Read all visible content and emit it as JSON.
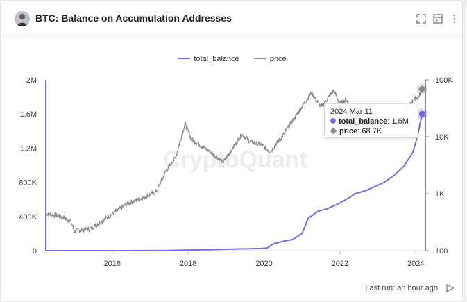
{
  "header": {
    "title": "BTC: Balance on Accumulation Addresses",
    "icons": [
      "avatar-photo",
      "expand-icon",
      "table-view-icon",
      "more-vertical-icon"
    ]
  },
  "watermark": "CryptoQuant",
  "footer": {
    "last_run": "Last run: an hour ago",
    "icon": "play-icon"
  },
  "colors": {
    "balance": "#7b68ee",
    "price": "#8c8c8c"
  },
  "tooltip": {
    "date": "2024 Mar 11",
    "rows": [
      {
        "series": "total_balance",
        "value": "1.6M"
      },
      {
        "series": "price",
        "value": "68.7K"
      }
    ]
  },
  "chart_data": {
    "type": "line",
    "legend_position": "top-center",
    "grid": false,
    "x_ticks": [
      "2016",
      "2018",
      "2020",
      "2022",
      "2024"
    ],
    "x_range": [
      "2014-04",
      "2024-03"
    ],
    "y_left": {
      "ticks": [
        "0",
        "400K",
        "800K",
        "1.2M",
        "1.6M",
        "2M"
      ],
      "range": [
        0,
        2000000
      ]
    },
    "y_right": {
      "ticks": [
        "100",
        "1K",
        "10K",
        "100K"
      ],
      "scale": "log",
      "range": [
        100,
        100000
      ]
    },
    "series": [
      {
        "name": "total_balance",
        "axis": "left",
        "points": [
          [
            "2014-04",
            0
          ],
          [
            "2015-06",
            0
          ],
          [
            "2016-06",
            0
          ],
          [
            "2017-06",
            2000
          ],
          [
            "2018-06",
            10000
          ],
          [
            "2019-06",
            20000
          ],
          [
            "2019-12",
            25000
          ],
          [
            "2020-02",
            30000
          ],
          [
            "2020-04",
            80000
          ],
          [
            "2020-07",
            110000
          ],
          [
            "2020-10",
            130000
          ],
          [
            "2021-01",
            200000
          ],
          [
            "2021-03",
            380000
          ],
          [
            "2021-06",
            460000
          ],
          [
            "2021-09",
            490000
          ],
          [
            "2021-12",
            540000
          ],
          [
            "2022-03",
            600000
          ],
          [
            "2022-06",
            670000
          ],
          [
            "2022-09",
            700000
          ],
          [
            "2022-12",
            750000
          ],
          [
            "2023-03",
            800000
          ],
          [
            "2023-06",
            880000
          ],
          [
            "2023-09",
            980000
          ],
          [
            "2023-12",
            1150000
          ],
          [
            "2024-01",
            1270000
          ],
          [
            "2024-02",
            1430000
          ],
          [
            "2024-03",
            1600000
          ]
        ]
      },
      {
        "name": "price",
        "axis": "right",
        "points": [
          [
            "2014-04",
            450
          ],
          [
            "2014-09",
            400
          ],
          [
            "2014-12",
            320
          ],
          [
            "2015-01",
            220
          ],
          [
            "2015-06",
            240
          ],
          [
            "2015-11",
            370
          ],
          [
            "2016-06",
            680
          ],
          [
            "2016-12",
            900
          ],
          [
            "2017-03",
            1100
          ],
          [
            "2017-06",
            2500
          ],
          [
            "2017-09",
            4300
          ],
          [
            "2017-12",
            17000
          ],
          [
            "2018-02",
            9000
          ],
          [
            "2018-06",
            6500
          ],
          [
            "2018-11",
            4000
          ],
          [
            "2018-12",
            3500
          ],
          [
            "2019-06",
            11000
          ],
          [
            "2019-09",
            8000
          ],
          [
            "2019-12",
            7200
          ],
          [
            "2020-03",
            5500
          ],
          [
            "2020-07",
            10500
          ],
          [
            "2020-12",
            28000
          ],
          [
            "2021-04",
            60000
          ],
          [
            "2021-07",
            33000
          ],
          [
            "2021-11",
            65000
          ],
          [
            "2022-01",
            38000
          ],
          [
            "2022-03",
            45000
          ],
          [
            "2022-05",
            30000
          ],
          [
            "2022-06",
            20000
          ],
          [
            "2023-10",
            30000
          ],
          [
            "2023-12",
            43000
          ],
          [
            "2024-02",
            52000
          ],
          [
            "2024-03",
            68700
          ]
        ]
      }
    ]
  }
}
